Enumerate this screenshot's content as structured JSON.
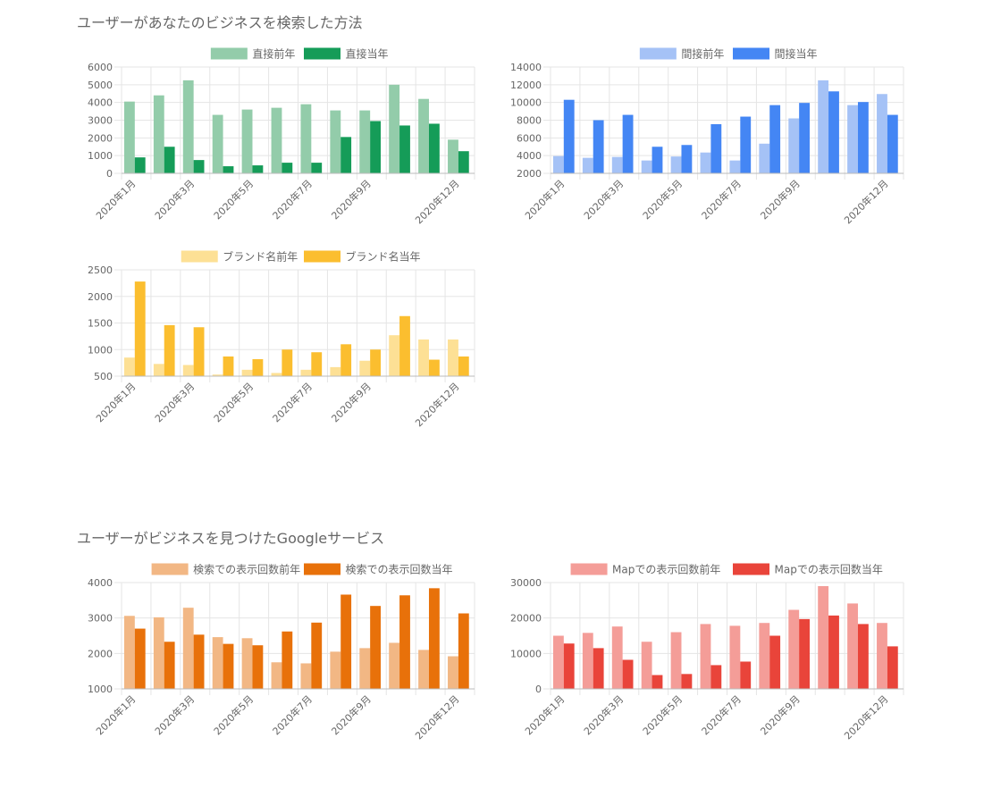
{
  "sections": [
    {
      "title": "ユーザーがあなたのビジネスを検索した方法"
    },
    {
      "title": "ユーザーがビジネスを見つけたGoogleサービス"
    }
  ],
  "chart_data": [
    {
      "type": "bar",
      "categories": [
        "2020年1月",
        "2020年2月",
        "2020年3月",
        "2020年4月",
        "2020年5月",
        "2020年6月",
        "2020年7月",
        "2020年8月",
        "2020年9月",
        "2020年10月",
        "2020年11月",
        "2020年12月"
      ],
      "tick_labels": [
        "2020年1月",
        "",
        "2020年3月",
        "",
        "2020年5月",
        "",
        "2020年7月",
        "",
        "2020年9月",
        "",
        "",
        "2020年12月"
      ],
      "ylim": [
        0,
        6000
      ],
      "yticks": [
        "6000",
        "5000",
        "4000",
        "3000",
        "2000",
        "1000",
        "0"
      ],
      "grid": true,
      "legend_position": "top",
      "series": [
        {
          "name": "直接前年",
          "color": "#93ccaa",
          "values": [
            4050,
            4400,
            5250,
            3300,
            3600,
            3700,
            3900,
            3550,
            3550,
            5000,
            4200,
            1900
          ]
        },
        {
          "name": "直接当年",
          "color": "#159c58",
          "values": [
            900,
            1500,
            750,
            400,
            450,
            600,
            600,
            2050,
            2950,
            2700,
            2800,
            1250
          ]
        }
      ]
    },
    {
      "type": "bar",
      "categories": [
        "2020年1月",
        "2020年2月",
        "2020年3月",
        "2020年4月",
        "2020年5月",
        "2020年6月",
        "2020年7月",
        "2020年8月",
        "2020年9月",
        "2020年10月",
        "2020年11月",
        "2020年12月"
      ],
      "tick_labels": [
        "2020年1月",
        "",
        "2020年3月",
        "",
        "2020年5月",
        "",
        "2020年7月",
        "",
        "2020年9月",
        "",
        "",
        "2020年12月"
      ],
      "ylim": [
        2000,
        14000
      ],
      "yticks": [
        "14000",
        "12000",
        "10000",
        "8000",
        "6000",
        "4000",
        "2000"
      ],
      "grid": true,
      "legend_position": "top",
      "series": [
        {
          "name": "間接前年",
          "color": "#a5c2f6",
          "values": [
            3950,
            3750,
            3850,
            3450,
            3900,
            4350,
            3450,
            5350,
            8200,
            12500,
            9700,
            10950
          ]
        },
        {
          "name": "間接当年",
          "color": "#4486f4",
          "values": [
            10300,
            8000,
            8600,
            5000,
            5200,
            7550,
            8400,
            9700,
            9950,
            11250,
            10050,
            8600
          ]
        }
      ]
    },
    {
      "type": "bar",
      "categories": [
        "2020年1月",
        "2020年2月",
        "2020年3月",
        "2020年4月",
        "2020年5月",
        "2020年6月",
        "2020年7月",
        "2020年8月",
        "2020年9月",
        "2020年10月",
        "2020年11月",
        "2020年12月"
      ],
      "tick_labels": [
        "2020年1月",
        "",
        "2020年3月",
        "",
        "2020年5月",
        "",
        "2020年7月",
        "",
        "2020年9月",
        "",
        "",
        "2020年12月"
      ],
      "ylim": [
        500,
        2500
      ],
      "yticks": [
        "2500",
        "2000",
        "1500",
        "1000",
        "500"
      ],
      "grid": true,
      "legend_position": "top",
      "series": [
        {
          "name": "ブランド名前年",
          "color": "#fde095",
          "values": [
            850,
            730,
            710,
            530,
            620,
            560,
            620,
            670,
            790,
            1270,
            1190,
            1190
          ]
        },
        {
          "name": "ブランド名当年",
          "color": "#fbbe2f",
          "values": [
            2280,
            1460,
            1420,
            870,
            820,
            1000,
            950,
            1100,
            1000,
            1630,
            810,
            870
          ]
        }
      ]
    },
    {
      "type": "bar",
      "categories": [
        "2020年1月",
        "2020年2月",
        "2020年3月",
        "2020年4月",
        "2020年5月",
        "2020年6月",
        "2020年7月",
        "2020年8月",
        "2020年9月",
        "2020年10月",
        "2020年11月",
        "2020年12月"
      ],
      "tick_labels": [
        "2020年1月",
        "",
        "2020年3月",
        "",
        "2020年5月",
        "",
        "2020年7月",
        "",
        "2020年9月",
        "",
        "",
        "2020年12月"
      ],
      "ylim": [
        1000,
        4000
      ],
      "yticks": [
        "4000",
        "3000",
        "2000",
        "1000"
      ],
      "grid": true,
      "legend_position": "top",
      "series": [
        {
          "name": "検索での表示回数前年",
          "color": "#f2b784",
          "values": [
            3060,
            3020,
            3290,
            2460,
            2430,
            1750,
            1720,
            2050,
            2150,
            2300,
            2100,
            1920
          ]
        },
        {
          "name": "検索での表示回数当年",
          "color": "#e8710a",
          "values": [
            2700,
            2330,
            2530,
            2270,
            2230,
            2620,
            2870,
            3660,
            3340,
            3640,
            3840,
            3130
          ]
        }
      ]
    },
    {
      "type": "bar",
      "categories": [
        "2020年1月",
        "2020年2月",
        "2020年3月",
        "2020年4月",
        "2020年5月",
        "2020年6月",
        "2020年7月",
        "2020年8月",
        "2020年9月",
        "2020年10月",
        "2020年11月",
        "2020年12月"
      ],
      "tick_labels": [
        "2020年1月",
        "",
        "2020年3月",
        "",
        "2020年5月",
        "",
        "2020年7月",
        "",
        "2020年9月",
        "",
        "",
        "2020年12月"
      ],
      "ylim": [
        0,
        30000
      ],
      "yticks": [
        "30000",
        "20000",
        "10000",
        "0"
      ],
      "grid": true,
      "legend_position": "top",
      "series": [
        {
          "name": "Mapでの表示回数前年",
          "color": "#f49d98",
          "values": [
            15000,
            15800,
            17600,
            13300,
            16000,
            18300,
            17800,
            18600,
            22300,
            29000,
            24100,
            18600
          ]
        },
        {
          "name": "Mapでの表示回数当年",
          "color": "#e9443a",
          "values": [
            12800,
            11500,
            8200,
            3900,
            4200,
            6700,
            7700,
            15000,
            19700,
            20700,
            18300,
            12000
          ]
        }
      ]
    }
  ]
}
